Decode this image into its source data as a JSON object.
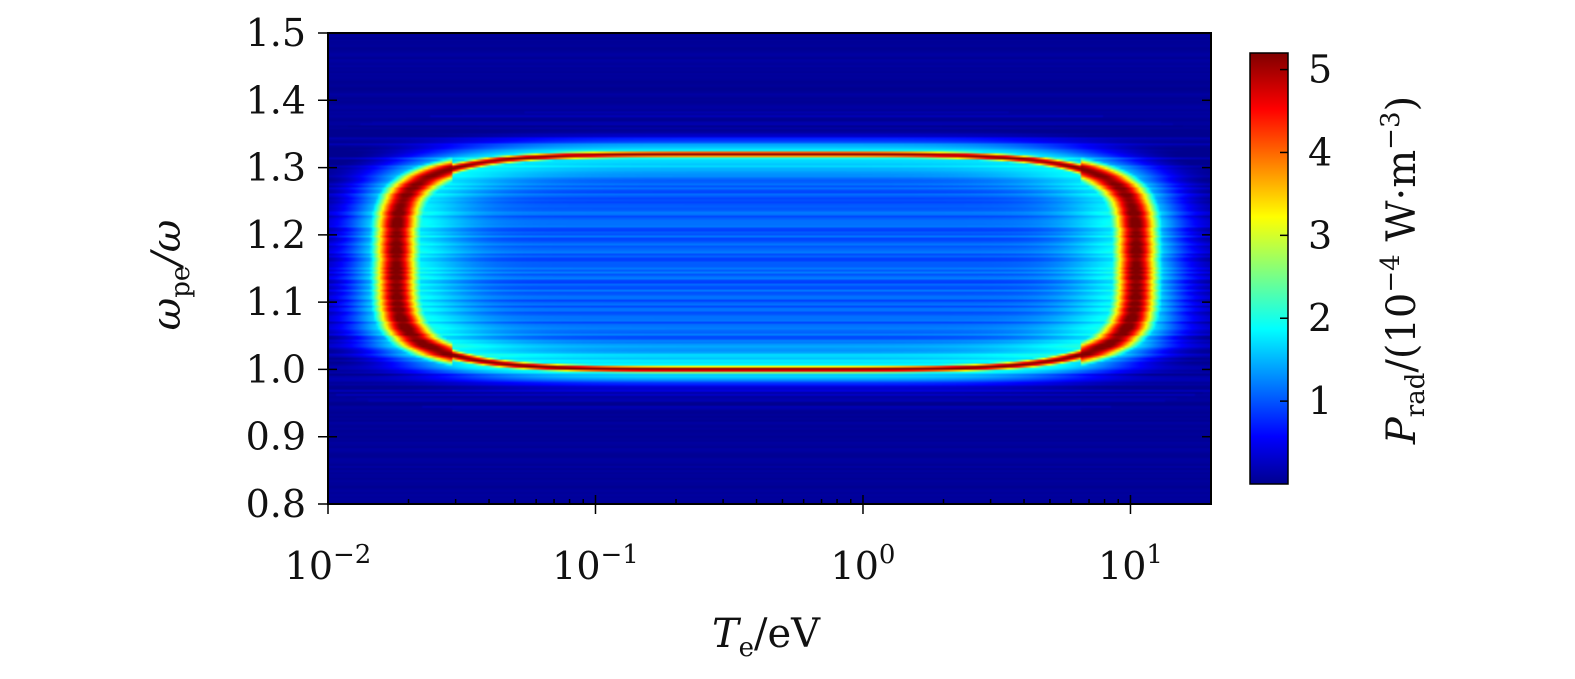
{
  "chart_data": {
    "type": "heatmap",
    "title": "",
    "xlabel": {
      "symbol": "T",
      "sub": "e",
      "unit": "/eV"
    },
    "ylabel": {
      "symbol": "ω",
      "sub": "pe",
      "rest": "/ω"
    },
    "colorbar_label": {
      "symbol": "P",
      "sub": "rad",
      "unit_pre": "/(10",
      "unit_sup": "−4",
      "unit_post": " W·m",
      "unit_sup2": "−3",
      "unit_close": ")"
    },
    "x_scale": "log",
    "xlim": [
      0.01,
      20
    ],
    "ylim": [
      0.8,
      1.5
    ],
    "x_ticks": [
      {
        "value": 0.01,
        "base": "10",
        "exp": "−2"
      },
      {
        "value": 0.1,
        "base": "10",
        "exp": "−1"
      },
      {
        "value": 1,
        "base": "10",
        "exp": "0"
      },
      {
        "value": 10,
        "base": "10",
        "exp": "1"
      }
    ],
    "y_ticks": [
      {
        "value": 0.8,
        "label": "0.8"
      },
      {
        "value": 0.9,
        "label": "0.9"
      },
      {
        "value": 1.0,
        "label": "1.0"
      },
      {
        "value": 1.1,
        "label": "1.1"
      },
      {
        "value": 1.2,
        "label": "1.2"
      },
      {
        "value": 1.3,
        "label": "1.3"
      },
      {
        "value": 1.4,
        "label": "1.4"
      },
      {
        "value": 1.5,
        "label": "1.5"
      }
    ],
    "colorbar": {
      "range": [
        0,
        5.2
      ],
      "ticks": [
        {
          "value": 1,
          "label": "1"
        },
        {
          "value": 2,
          "label": "2"
        },
        {
          "value": 3,
          "label": "3"
        },
        {
          "value": 4,
          "label": "4"
        },
        {
          "value": 5,
          "label": "5"
        }
      ],
      "colormap": "jet"
    },
    "ridge": {
      "description": "closed high-intensity ring",
      "bottom_y": 1.0,
      "top_y": 1.32,
      "left_x": 0.018,
      "right_x": 10.5,
      "peak_value": 5.2,
      "interior_value": 1.0,
      "background_value": 0.05
    }
  }
}
